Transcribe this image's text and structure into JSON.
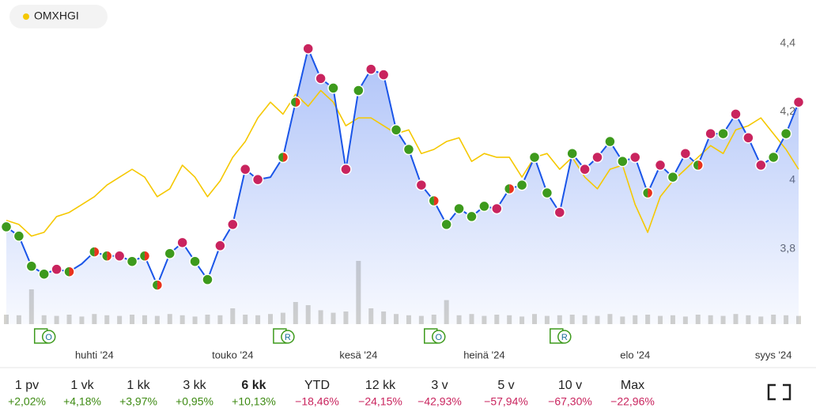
{
  "chart_data": {
    "type": "line",
    "categories": [
      null,
      null,
      null,
      null,
      null,
      null,
      null,
      "huhti '24",
      null,
      null,
      null,
      null,
      null,
      null,
      null,
      null,
      null,
      null,
      "touko '24",
      null,
      null,
      null,
      null,
      null,
      null,
      null,
      null,
      null,
      "kesä '24",
      null,
      null,
      null,
      null,
      null,
      null,
      null,
      null,
      null,
      "heinä '24",
      null,
      null,
      null,
      null,
      null,
      null,
      null,
      null,
      null,
      null,
      null,
      "elo '24",
      null,
      null,
      null,
      null,
      null,
      null,
      null,
      null,
      null,
      null,
      "syys '24",
      null,
      null
    ],
    "series": [
      {
        "color": "#1a55e8",
        "values": [
          3.864,
          3.837,
          3.749,
          3.726,
          3.74,
          3.733,
          3.756,
          3.791,
          3.779,
          3.779,
          3.763,
          3.779,
          3.694,
          3.786,
          3.818,
          3.763,
          3.71,
          3.809,
          3.871,
          4.032,
          4.002,
          4.009,
          4.067,
          4.228,
          4.384,
          4.297,
          4.269,
          4.032,
          4.262,
          4.324,
          4.308,
          4.147,
          4.09,
          3.986,
          3.94,
          3.871,
          3.917,
          3.894,
          3.924,
          3.917,
          3.975,
          3.986,
          4.067,
          3.963,
          3.906,
          4.078,
          4.032,
          4.067,
          4.113,
          4.055,
          4.067,
          3.963,
          4.044,
          4.009,
          4.078,
          4.044,
          4.136,
          4.136,
          4.193,
          4.124,
          4.044,
          4.067,
          4.136,
          4.228
        ],
        "dot_colors": [
          "#3d9a1c",
          "#3d9a1c",
          "#3d9a1c",
          "#3d9a1c",
          "#c9245e",
          [
            "#e8331d",
            "#3d9a1c"
          ],
          null,
          [
            "#e8331d",
            "#3d9a1c"
          ],
          [
            "#e8331d",
            "#3d9a1c"
          ],
          "#c9245e",
          "#3d9a1c",
          [
            "#e8331d",
            "#3d9a1c"
          ],
          [
            "#e8331d",
            "#3d9a1c"
          ],
          "#3d9a1c",
          "#c9245e",
          "#3d9a1c",
          "#3d9a1c",
          "#c9245e",
          "#c9245e",
          "#c9245e",
          "#c9245e",
          null,
          [
            "#e8331d",
            "#3d9a1c"
          ],
          [
            "#e8331d",
            "#3d9a1c"
          ],
          "#c9245e",
          "#c9245e",
          "#3d9a1c",
          "#c9245e",
          "#3d9a1c",
          "#c9245e",
          "#c9245e",
          "#3d9a1c",
          "#3d9a1c",
          "#c9245e",
          [
            "#e8331d",
            "#3d9a1c"
          ],
          "#3d9a1c",
          "#3d9a1c",
          "#3d9a1c",
          "#3d9a1c",
          "#c9245e",
          [
            "#e8331d",
            "#3d9a1c"
          ],
          "#3d9a1c",
          "#3d9a1c",
          "#3d9a1c",
          "#c9245e",
          "#3d9a1c",
          "#c9245e",
          "#c9245e",
          "#3d9a1c",
          "#3d9a1c",
          "#c9245e",
          [
            "#e8331d",
            "#3d9a1c"
          ],
          "#c9245e",
          "#3d9a1c",
          "#c9245e",
          [
            "#e8331d",
            "#3d9a1c"
          ],
          "#c9245e",
          "#3d9a1c",
          "#c9245e",
          "#c9245e",
          "#c9245e",
          "#3d9a1c",
          "#3d9a1c",
          "#c9245e"
        ]
      },
      {
        "name": "OMXHGI",
        "color": "#f5c800",
        "values": [
          3.883,
          3.871,
          3.837,
          3.848,
          3.894,
          3.906,
          3.929,
          3.952,
          3.986,
          4.009,
          4.032,
          4.009,
          3.952,
          3.975,
          4.044,
          4.009,
          3.952,
          3.998,
          4.067,
          4.113,
          4.182,
          4.228,
          4.193,
          4.251,
          4.216,
          4.262,
          4.228,
          4.159,
          4.182,
          4.182,
          4.159,
          4.136,
          4.147,
          4.078,
          4.09,
          4.113,
          4.124,
          4.055,
          4.078,
          4.067,
          4.067,
          4.009,
          4.067,
          4.078,
          4.032,
          4.067,
          4.009,
          3.975,
          4.032,
          4.044,
          3.929,
          3.848,
          3.952,
          3.998,
          4.032,
          4.067,
          4.101,
          4.078,
          4.147,
          4.159,
          4.182,
          4.136,
          4.09,
          4.032
        ]
      }
    ],
    "volume": [
      15,
      14,
      55,
      14,
      13,
      15,
      12,
      16,
      14,
      13,
      15,
      14,
      13,
      16,
      14,
      12,
      15,
      14,
      25,
      15,
      14,
      16,
      18,
      35,
      30,
      22,
      18,
      20,
      100,
      25,
      20,
      16,
      14,
      13,
      15,
      38,
      14,
      16,
      13,
      15,
      14,
      12,
      16,
      13,
      14,
      15,
      14,
      13,
      16,
      12,
      14,
      15,
      13,
      14,
      12,
      15,
      14,
      13,
      16,
      14,
      12,
      15,
      14,
      13
    ],
    "color_area": "#4a78f0",
    "volume_color": "#d3d2cd",
    "ylim": [
      3.58,
      4.48
    ],
    "yticks": [
      {
        "value": 3.8,
        "label": "3,8"
      },
      {
        "value": 4,
        "label": "4"
      },
      {
        "value": 4.2,
        "label": "4,2"
      },
      {
        "value": 4.4,
        "label": "4,4"
      }
    ],
    "grid": false,
    "events": [
      {
        "at": 3,
        "label": "O"
      },
      {
        "at": 22,
        "label": "R"
      },
      {
        "at": 34,
        "label": "O"
      },
      {
        "at": 44,
        "label": "R"
      }
    ]
  },
  "periods": [
    {
      "label": "1 pv",
      "change": "+2,02%"
    },
    {
      "label": "1 vk",
      "change": "+4,18%"
    },
    {
      "label": "1 kk",
      "change": "+3,97%"
    },
    {
      "label": "3 kk",
      "change": "+0,95%"
    },
    {
      "label": "6 kk",
      "change": "+10,13%"
    },
    {
      "label": "YTD",
      "change": "−18,46%"
    },
    {
      "label": "12 kk",
      "change": "−24,15%"
    },
    {
      "label": "3 v",
      "change": "−42,93%"
    },
    {
      "label": "5 v",
      "change": "−57,94%"
    },
    {
      "label": "10 v",
      "change": "−67,30%"
    },
    {
      "label": "Max",
      "change": "−22,96%"
    }
  ],
  "selected_period": 4
}
